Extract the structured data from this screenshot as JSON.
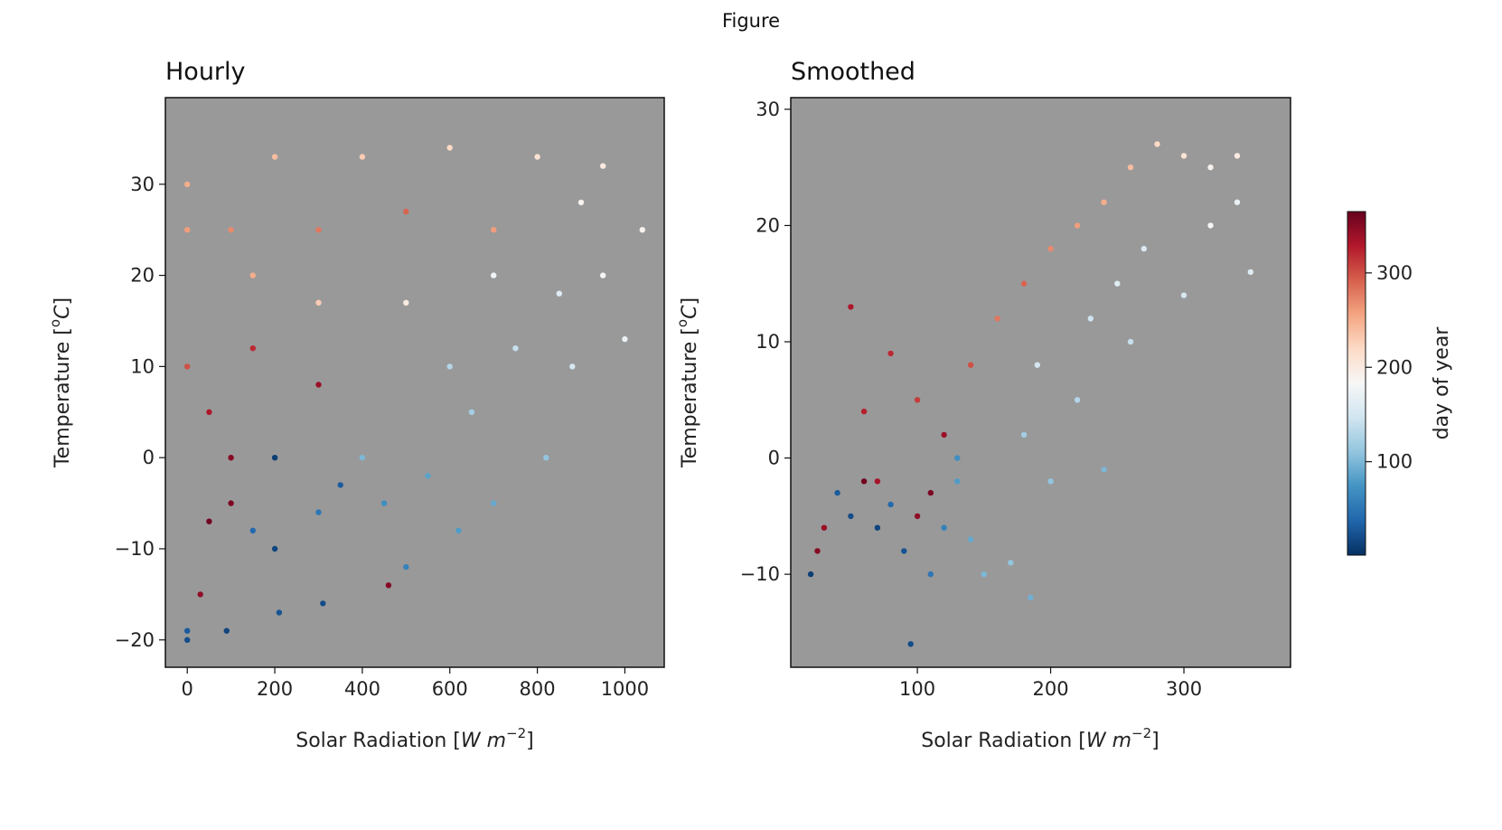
{
  "window": {
    "title": "Figure"
  },
  "colors": {
    "plot_bg": "#999999",
    "cmap": [
      "#053061",
      "#2166ac",
      "#4393c3",
      "#92c5de",
      "#d1e5f0",
      "#f7f7f7",
      "#fddbc7",
      "#f4a582",
      "#d6604d",
      "#b2182b",
      "#67001f"
    ]
  },
  "colorbar": {
    "label": "day of year",
    "ticks": [
      {
        "value": 100,
        "label": "100"
      },
      {
        "value": 200,
        "label": "200"
      },
      {
        "value": 300,
        "label": "300"
      }
    ],
    "range": [
      1,
      365
    ]
  },
  "chart_data": [
    {
      "type": "scatter",
      "title": "Hourly",
      "xlabel": "Solar Radiation [W m^-2]",
      "ylabel": "Temperature [°C]",
      "xlim": [
        -50,
        1090
      ],
      "ylim": [
        -23,
        39.5
      ],
      "xticks": [
        {
          "value": 0,
          "label": "0"
        },
        {
          "value": 200,
          "label": "200"
        },
        {
          "value": 400,
          "label": "400"
        },
        {
          "value": 600,
          "label": "600"
        },
        {
          "value": 800,
          "label": "800"
        },
        {
          "value": 1000,
          "label": "1000"
        }
      ],
      "yticks": [
        {
          "value": -20,
          "label": "−20"
        },
        {
          "value": -10,
          "label": "−10"
        },
        {
          "value": 0,
          "label": "0"
        },
        {
          "value": 10,
          "label": "10"
        },
        {
          "value": 20,
          "label": "20"
        },
        {
          "value": 30,
          "label": "30"
        }
      ],
      "color_by": "day of year",
      "points": [
        [
          0,
          -20,
          20
        ],
        [
          0,
          -19,
          30
        ],
        [
          90,
          -19,
          15
        ],
        [
          210,
          -17,
          25
        ],
        [
          310,
          -16,
          20
        ],
        [
          460,
          -14,
          350
        ],
        [
          30,
          -15,
          345
        ],
        [
          500,
          -12,
          60
        ],
        [
          620,
          -8,
          80
        ],
        [
          700,
          -5,
          90
        ],
        [
          820,
          0,
          110
        ],
        [
          880,
          10,
          150
        ],
        [
          950,
          20,
          180
        ],
        [
          1000,
          13,
          170
        ],
        [
          1040,
          25,
          190
        ],
        [
          950,
          32,
          200
        ],
        [
          800,
          33,
          210
        ],
        [
          600,
          34,
          220
        ],
        [
          400,
          33,
          230
        ],
        [
          200,
          33,
          240
        ],
        [
          0,
          30,
          250
        ],
        [
          0,
          25,
          260
        ],
        [
          100,
          25,
          270
        ],
        [
          300,
          25,
          280
        ],
        [
          500,
          27,
          290
        ],
        [
          700,
          25,
          260
        ],
        [
          0,
          10,
          300
        ],
        [
          150,
          12,
          320
        ],
        [
          300,
          8,
          340
        ],
        [
          100,
          0,
          350
        ],
        [
          200,
          0,
          10
        ],
        [
          350,
          -3,
          30
        ],
        [
          50,
          -7,
          360
        ],
        [
          150,
          -8,
          40
        ],
        [
          300,
          -6,
          50
        ],
        [
          450,
          -5,
          70
        ],
        [
          550,
          -2,
          85
        ],
        [
          650,
          5,
          120
        ],
        [
          750,
          12,
          140
        ],
        [
          850,
          18,
          160
        ],
        [
          900,
          28,
          190
        ],
        [
          500,
          17,
          200
        ],
        [
          300,
          17,
          230
        ],
        [
          150,
          20,
          250
        ],
        [
          50,
          5,
          330
        ],
        [
          200,
          -10,
          15
        ],
        [
          100,
          -5,
          355
        ],
        [
          400,
          0,
          100
        ],
        [
          600,
          10,
          130
        ],
        [
          700,
          20,
          175
        ]
      ]
    },
    {
      "type": "scatter",
      "title": "Smoothed",
      "xlabel": "Solar Radiation [W m^-2]",
      "ylabel": "Temperature [°C]",
      "xlim": [
        5,
        380
      ],
      "ylim": [
        -18,
        31
      ],
      "xticks": [
        {
          "value": 100,
          "label": "100"
        },
        {
          "value": 200,
          "label": "200"
        },
        {
          "value": 300,
          "label": "300"
        }
      ],
      "yticks": [
        {
          "value": -10,
          "label": "−10"
        },
        {
          "value": 0,
          "label": "0"
        },
        {
          "value": 10,
          "label": "10"
        },
        {
          "value": 20,
          "label": "20"
        },
        {
          "value": 30,
          "label": "30"
        }
      ],
      "color_by": "day of year",
      "points": [
        [
          20,
          -10,
          10
        ],
        [
          25,
          -8,
          350
        ],
        [
          30,
          -6,
          340
        ],
        [
          40,
          -3,
          30
        ],
        [
          50,
          -5,
          20
        ],
        [
          60,
          -2,
          360
        ],
        [
          70,
          -6,
          15
        ],
        [
          80,
          -4,
          40
        ],
        [
          90,
          -8,
          25
        ],
        [
          95,
          -16,
          20
        ],
        [
          100,
          -5,
          345
        ],
        [
          110,
          -3,
          355
        ],
        [
          120,
          -6,
          60
        ],
        [
          130,
          -2,
          80
        ],
        [
          140,
          -7,
          90
        ],
        [
          150,
          -10,
          100
        ],
        [
          170,
          -9,
          110
        ],
        [
          185,
          -12,
          95
        ],
        [
          50,
          13,
          330
        ],
        [
          80,
          9,
          320
        ],
        [
          100,
          5,
          310
        ],
        [
          120,
          2,
          340
        ],
        [
          140,
          8,
          300
        ],
        [
          160,
          12,
          280
        ],
        [
          180,
          15,
          290
        ],
        [
          200,
          18,
          270
        ],
        [
          220,
          20,
          260
        ],
        [
          240,
          22,
          250
        ],
        [
          260,
          25,
          240
        ],
        [
          280,
          27,
          220
        ],
        [
          300,
          26,
          210
        ],
        [
          320,
          25,
          190
        ],
        [
          340,
          22,
          170
        ],
        [
          350,
          16,
          160
        ],
        [
          300,
          14,
          150
        ],
        [
          260,
          10,
          140
        ],
        [
          220,
          5,
          130
        ],
        [
          180,
          2,
          120
        ],
        [
          200,
          -2,
          110
        ],
        [
          240,
          -1,
          100
        ],
        [
          320,
          20,
          180
        ],
        [
          340,
          26,
          200
        ],
        [
          250,
          15,
          160
        ],
        [
          190,
          8,
          150
        ],
        [
          230,
          12,
          145
        ],
        [
          270,
          18,
          155
        ],
        [
          130,
          0,
          70
        ],
        [
          110,
          -10,
          50
        ],
        [
          70,
          -2,
          335
        ],
        [
          60,
          4,
          325
        ]
      ]
    }
  ]
}
